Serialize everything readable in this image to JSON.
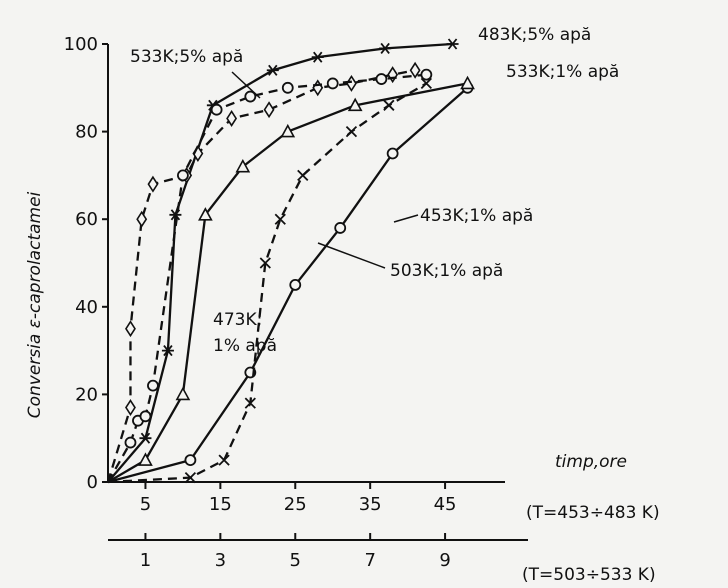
{
  "chart_data": {
    "type": "line",
    "ylabel": "Conversia ε-caprolactamei",
    "xlabel": "timp,ore",
    "ylim": [
      0,
      100
    ],
    "y_ticks": [
      0,
      20,
      40,
      60,
      80,
      100
    ],
    "x_axis_primary": {
      "ticks": [
        5,
        15,
        25,
        35,
        45
      ],
      "range_label": "(T=453÷483 K)",
      "xlim": [
        0,
        53
      ]
    },
    "x_axis_secondary": {
      "ticks": [
        1,
        3,
        5,
        7,
        9
      ],
      "range_label": "(T=503÷533 K)",
      "xlim": [
        0,
        10.6
      ]
    },
    "grid": false,
    "series": [
      {
        "name": "453K;1% apă",
        "axis": "primary",
        "marker": "circle",
        "line": "solid",
        "points": [
          [
            0,
            0
          ],
          [
            11,
            5
          ],
          [
            19,
            25
          ],
          [
            25,
            45
          ],
          [
            31,
            58
          ],
          [
            38,
            75
          ],
          [
            48,
            90
          ]
        ]
      },
      {
        "name": "483K;5% apă",
        "axis": "primary",
        "marker": "star",
        "line": "solid",
        "points": [
          [
            0,
            0
          ],
          [
            5,
            10
          ],
          [
            8,
            30
          ],
          [
            9,
            61
          ],
          [
            14,
            86
          ],
          [
            22,
            94
          ],
          [
            28,
            97
          ],
          [
            37,
            99
          ],
          [
            46,
            100
          ]
        ]
      },
      {
        "name": "473K; 1% apă",
        "axis": "primary",
        "marker": "triangle",
        "line": "solid",
        "points": [
          [
            0,
            0
          ],
          [
            5,
            5
          ],
          [
            10,
            20
          ],
          [
            13,
            61
          ],
          [
            18,
            72
          ],
          [
            24,
            80
          ],
          [
            33,
            86
          ],
          [
            48,
            91
          ]
        ]
      },
      {
        "name": "503K;1% apă",
        "axis": "secondary",
        "marker": "x",
        "line": "dashed",
        "points": [
          [
            0,
            0
          ],
          [
            2.2,
            1
          ],
          [
            3.1,
            5
          ],
          [
            3.8,
            18
          ],
          [
            4.2,
            50
          ],
          [
            4.6,
            60
          ],
          [
            5.2,
            70
          ],
          [
            6.5,
            80
          ],
          [
            7.5,
            86
          ],
          [
            8.5,
            91
          ]
        ]
      },
      {
        "name": "533K;5% apă",
        "axis": "secondary",
        "marker": "diamond",
        "line": "dashed",
        "points": [
          [
            0,
            0
          ],
          [
            0.6,
            17
          ],
          [
            0.6,
            35
          ],
          [
            0.9,
            60
          ],
          [
            1.2,
            68
          ],
          [
            2.1,
            70
          ],
          [
            2.4,
            75
          ],
          [
            3.3,
            83
          ],
          [
            4.3,
            85
          ],
          [
            5.6,
            90
          ],
          [
            6.5,
            91
          ],
          [
            7.6,
            93
          ],
          [
            8.2,
            94
          ]
        ]
      },
      {
        "name": "533K;1% apă",
        "axis": "secondary",
        "marker": "circle",
        "line": "dashed",
        "points": [
          [
            0,
            0
          ],
          [
            0.6,
            9
          ],
          [
            0.8,
            14
          ],
          [
            1.0,
            15
          ],
          [
            1.2,
            22
          ],
          [
            2.0,
            70
          ],
          [
            2.9,
            85
          ],
          [
            3.8,
            88
          ],
          [
            4.8,
            90
          ],
          [
            6.0,
            91
          ],
          [
            7.3,
            92
          ],
          [
            8.5,
            93
          ]
        ]
      }
    ]
  }
}
